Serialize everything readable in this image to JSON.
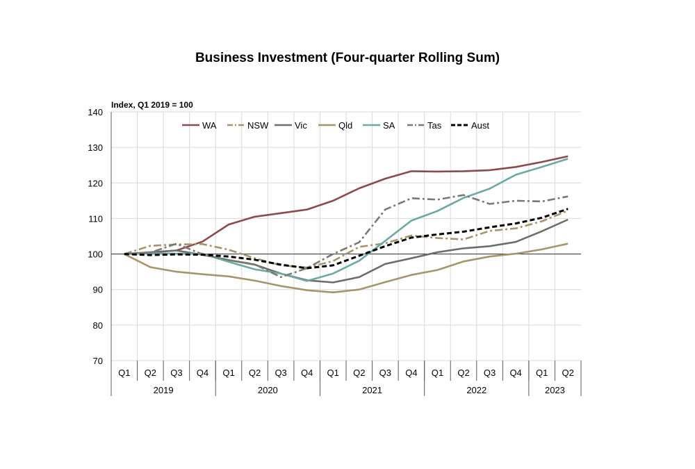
{
  "chart_data": {
    "type": "line",
    "title": "Business Investment (Four-quarter Rolling Sum)",
    "ylabel": "Index, Q1 2019 = 100",
    "xlabel": "",
    "ylim": [
      70,
      140
    ],
    "yticks": [
      70,
      80,
      90,
      100,
      110,
      120,
      130,
      140
    ],
    "grid": true,
    "legend": "top-center",
    "categories": [
      "Q1",
      "Q2",
      "Q3",
      "Q4",
      "Q1",
      "Q2",
      "Q3",
      "Q4",
      "Q1",
      "Q2",
      "Q3",
      "Q4",
      "Q1",
      "Q2",
      "Q3",
      "Q4",
      "Q1",
      "Q2"
    ],
    "years": [
      {
        "label": "2019",
        "quarters": 4
      },
      {
        "label": "2020",
        "quarters": 4
      },
      {
        "label": "2021",
        "quarters": 4
      },
      {
        "label": "2022",
        "quarters": 4
      },
      {
        "label": "2023",
        "quarters": 2
      }
    ],
    "series": [
      {
        "name": "WA",
        "color": "#8b4a4c",
        "style": "solid",
        "values": [
          100,
          100.5,
          101,
          103.5,
          108.3,
          110.5,
          111.5,
          112.5,
          115,
          118.5,
          121.2,
          123.3,
          123.2,
          123.3,
          123.6,
          124.5,
          125.9,
          127.5
        ]
      },
      {
        "name": "NSW",
        "color": "#a8946a",
        "style": "dashdot",
        "values": [
          100,
          102.3,
          102.7,
          102.8,
          101.2,
          98.8,
          96.8,
          96.2,
          98,
          102,
          103,
          105.2,
          104.5,
          104.1,
          106.5,
          107.2,
          109.2,
          112.2
        ]
      },
      {
        "name": "Vic",
        "color": "#6e6e66",
        "style": "solid",
        "values": [
          100,
          100.4,
          101,
          99.8,
          98.3,
          97,
          94.5,
          92.6,
          92,
          93.5,
          97.2,
          98.8,
          100.5,
          101.6,
          102.2,
          103.4,
          106.4,
          109.7
        ]
      },
      {
        "name": "Qld",
        "color": "#a8946a",
        "style": "solid",
        "values": [
          100,
          96.3,
          95,
          94.3,
          93.7,
          92.5,
          91,
          89.8,
          89.2,
          90,
          92.1,
          94.1,
          95.5,
          97.9,
          99.3,
          100.1,
          101.3,
          102.9
        ]
      },
      {
        "name": "SA",
        "color": "#6aa9a6",
        "style": "solid",
        "values": [
          100,
          100.2,
          100.1,
          100.1,
          97.8,
          95.7,
          94.5,
          92.4,
          94.5,
          98.1,
          103.7,
          109.4,
          112.1,
          115.8,
          118.4,
          122.3,
          124.5,
          126.8
        ]
      },
      {
        "name": "Tas",
        "color": "#7a7a72",
        "style": "dashdot",
        "values": [
          100,
          100.4,
          102.9,
          99.9,
          98.3,
          97.1,
          93.5,
          96,
          100,
          103.3,
          112.5,
          115.7,
          115.3,
          116.6,
          114.1,
          115,
          114.8,
          116.2
        ]
      },
      {
        "name": "Aust",
        "color": "#000000",
        "style": "dashed",
        "values": [
          100,
          99.7,
          99.9,
          99.8,
          99.3,
          98.4,
          97,
          96,
          96.8,
          99.5,
          102.2,
          104.6,
          105.5,
          106.3,
          107.5,
          108.6,
          110.2,
          112.7
        ]
      }
    ]
  }
}
